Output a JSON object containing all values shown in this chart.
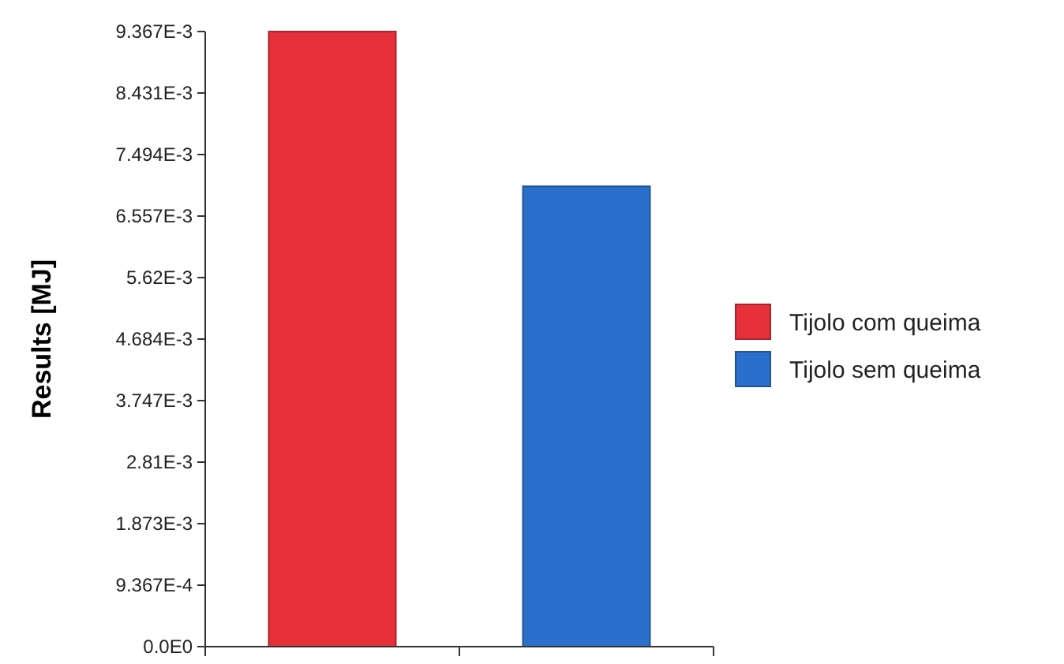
{
  "chart_data": {
    "type": "bar",
    "ylabel": "Results [MJ]",
    "categories": [
      null,
      null
    ],
    "series": [
      {
        "name": "Tijolo com queima",
        "color": "#e5303a",
        "values": [
          0.009367,
          null
        ]
      },
      {
        "name": "Tijolo sem queima",
        "color": "#2a6fc9",
        "values": [
          null,
          0.00701
        ]
      }
    ],
    "ylim": [
      0,
      0.009367
    ],
    "yticks": [
      {
        "value": 0,
        "label": "0.0E0"
      },
      {
        "value": 0.0009367,
        "label": "9.367E-4"
      },
      {
        "value": 0.001873,
        "label": "1.873E-3"
      },
      {
        "value": 0.00281,
        "label": "2.81E-3"
      },
      {
        "value": 0.003747,
        "label": "3.747E-3"
      },
      {
        "value": 0.004684,
        "label": "4.684E-3"
      },
      {
        "value": 0.00562,
        "label": "5.62E-3"
      },
      {
        "value": 0.006557,
        "label": "6.557E-3"
      },
      {
        "value": 0.007494,
        "label": "7.494E-3"
      },
      {
        "value": 0.008431,
        "label": "8.431E-3"
      },
      {
        "value": 0.009367,
        "label": "9.367E-3"
      }
    ],
    "grid": false,
    "legend": "right"
  }
}
